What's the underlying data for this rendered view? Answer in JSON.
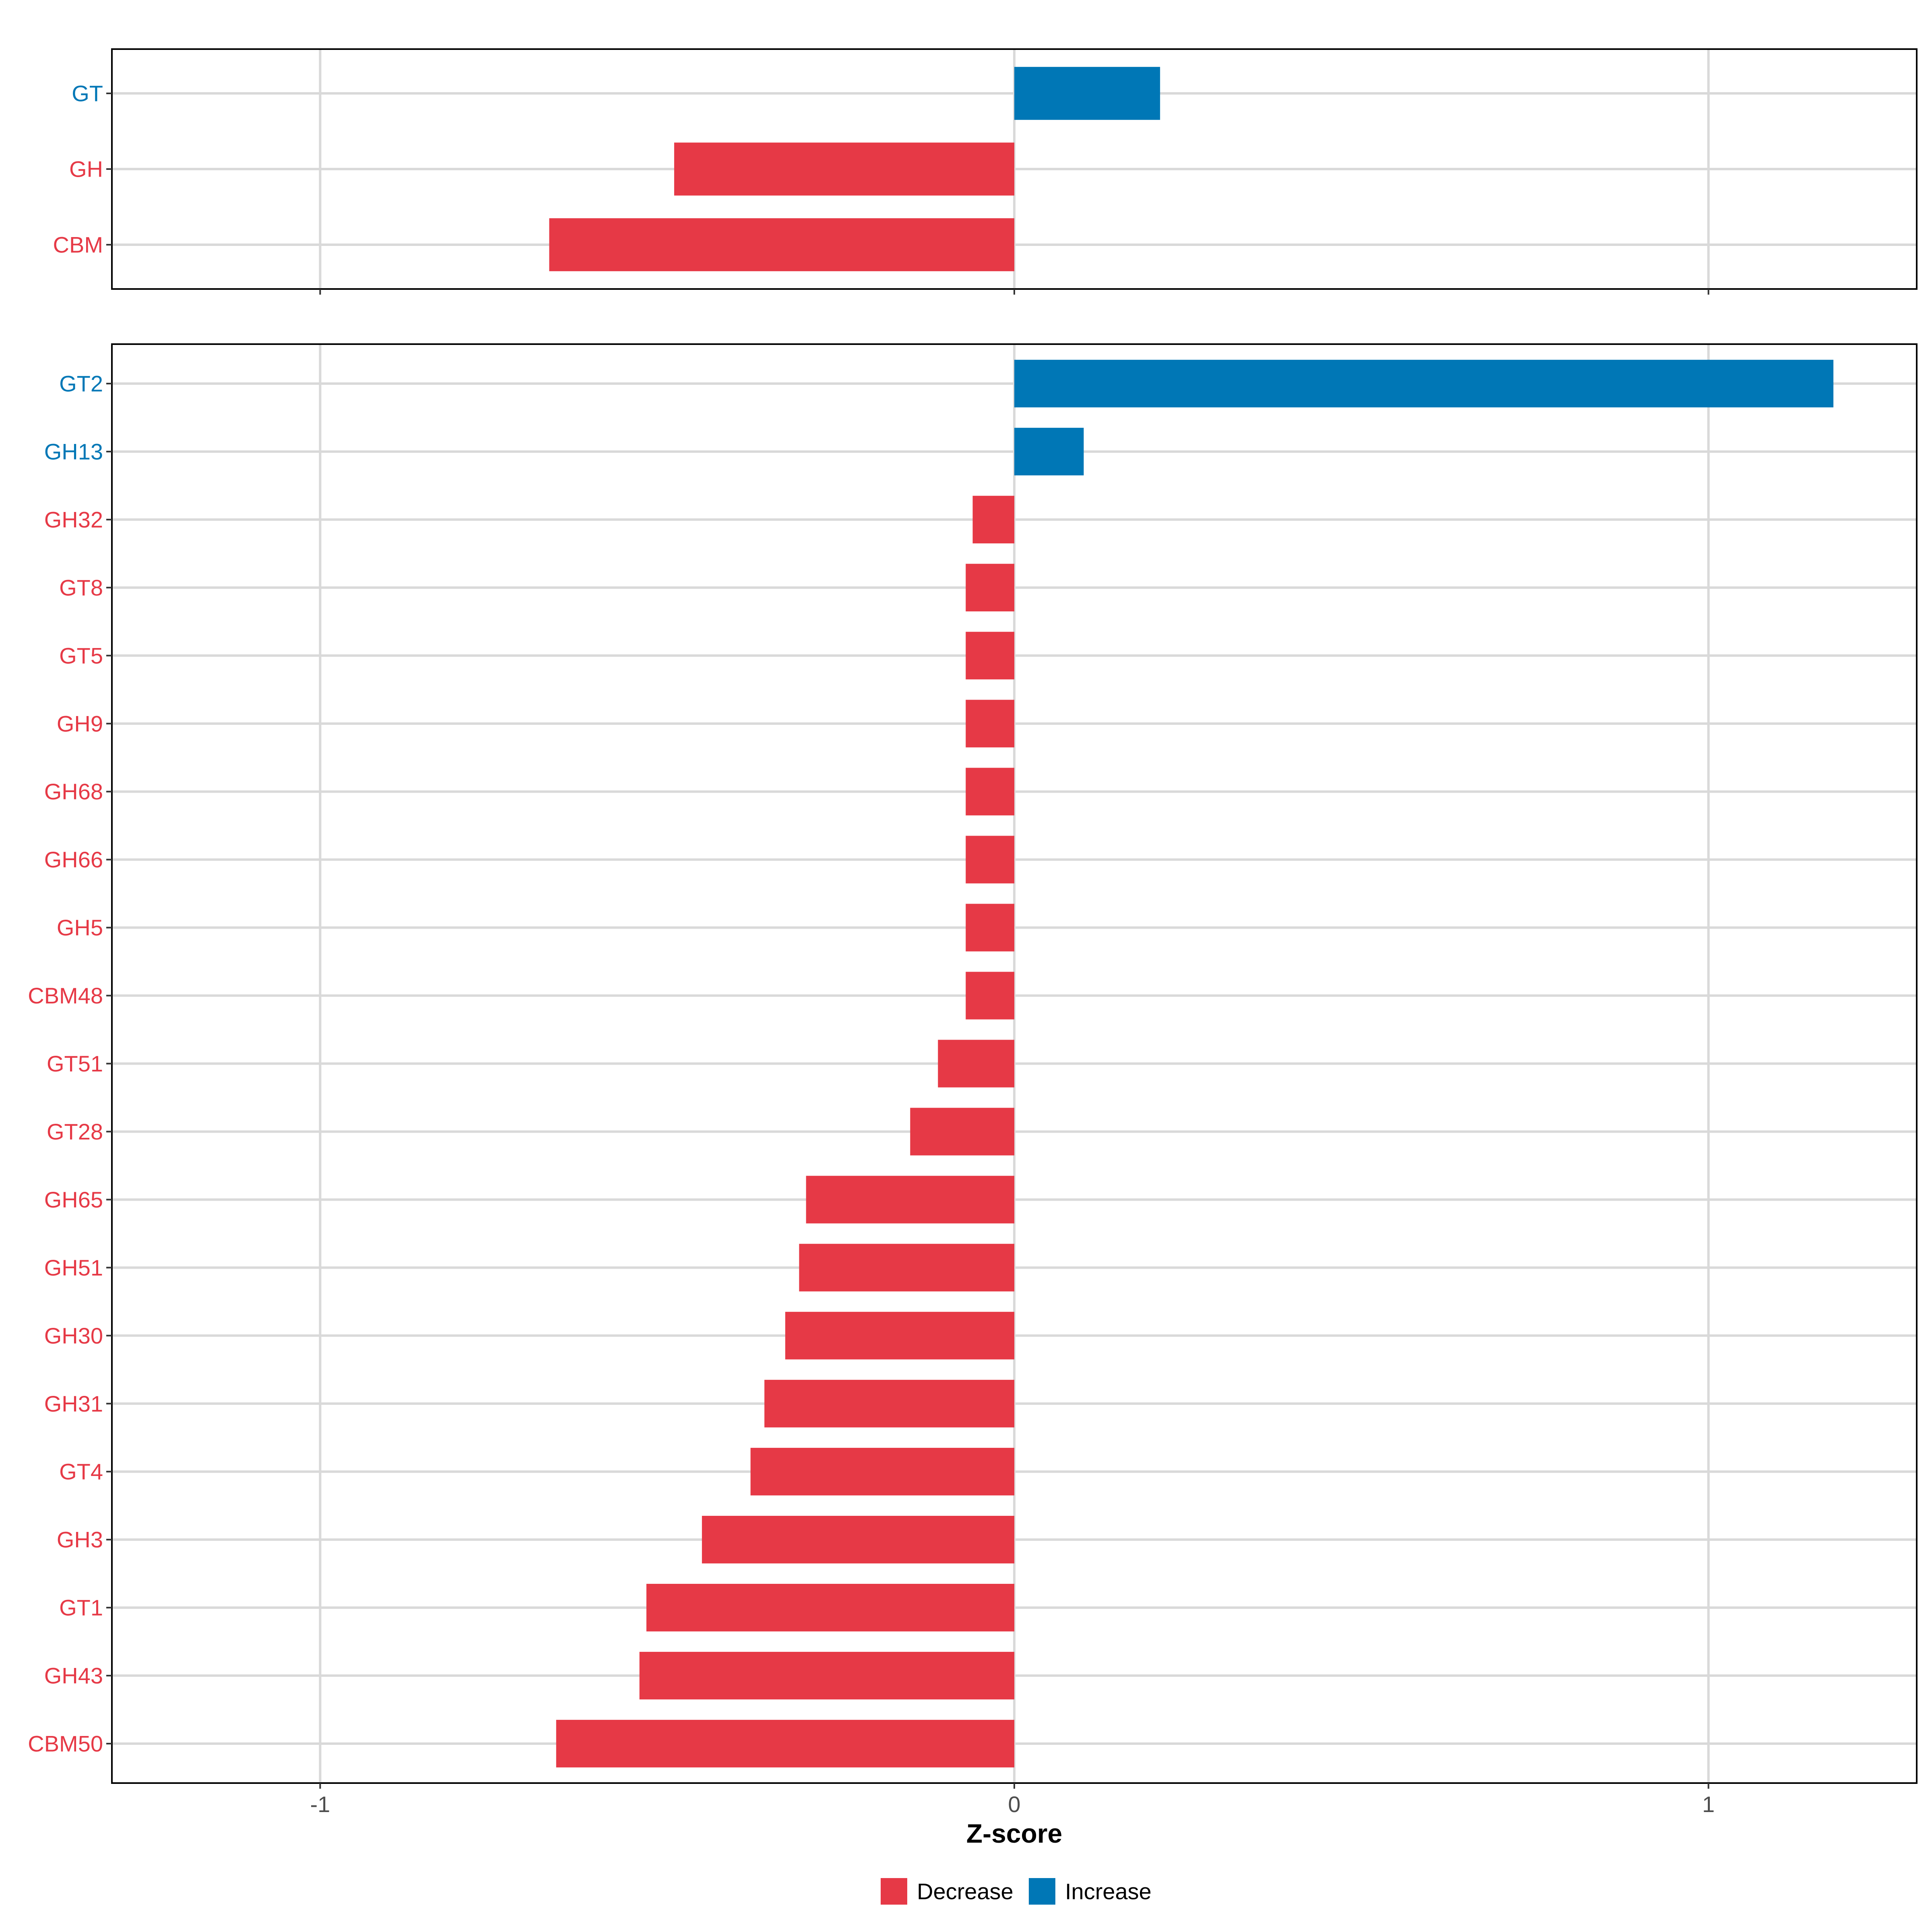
{
  "colors": {
    "decrease": "#E63946",
    "increase": "#0077B6",
    "grid": "#D9D9D9",
    "zero_line": "#DDDDDD",
    "axis_text": "#4D4D4D",
    "frame": "#000000"
  },
  "chart_data": [
    {
      "type": "bar",
      "orientation": "horizontal",
      "panel": "top",
      "xlim": [
        -1.3,
        1.3
      ],
      "x_ticks": [
        -1,
        0,
        1
      ],
      "show_tick_labels": false,
      "grid": true,
      "categories": [
        "GT",
        "GH",
        "CBM"
      ],
      "values": [
        0.21,
        -0.49,
        -0.67
      ],
      "groups": [
        "Increase",
        "Decrease",
        "Decrease"
      ]
    },
    {
      "type": "bar",
      "orientation": "horizontal",
      "panel": "bottom",
      "xlim": [
        -1.3,
        1.3
      ],
      "x_ticks": [
        -1,
        0,
        1
      ],
      "x_tick_labels": [
        "-1",
        "0",
        "1"
      ],
      "show_tick_labels": true,
      "xlabel": "Z-score",
      "grid": true,
      "categories": [
        "GT2",
        "GH13",
        "GH32",
        "GT8",
        "GT5",
        "GH9",
        "GH68",
        "GH66",
        "GH5",
        "CBM48",
        "GT51",
        "GT28",
        "GH65",
        "GH51",
        "GH30",
        "GH31",
        "GT4",
        "GH3",
        "GT1",
        "GH43",
        "CBM50"
      ],
      "values": [
        1.18,
        0.1,
        -0.06,
        -0.07,
        -0.07,
        -0.07,
        -0.07,
        -0.07,
        -0.07,
        -0.07,
        -0.11,
        -0.15,
        -0.3,
        -0.31,
        -0.33,
        -0.36,
        -0.38,
        -0.45,
        -0.53,
        -0.54,
        -0.66
      ],
      "groups": [
        "Increase",
        "Increase",
        "Decrease",
        "Decrease",
        "Decrease",
        "Decrease",
        "Decrease",
        "Decrease",
        "Decrease",
        "Decrease",
        "Decrease",
        "Decrease",
        "Decrease",
        "Decrease",
        "Decrease",
        "Decrease",
        "Decrease",
        "Decrease",
        "Decrease",
        "Decrease",
        "Decrease"
      ]
    }
  ],
  "legend": {
    "placement": "bottom",
    "items": [
      {
        "label": "Decrease",
        "color": "#E63946"
      },
      {
        "label": "Increase",
        "color": "#0077B6"
      }
    ]
  }
}
